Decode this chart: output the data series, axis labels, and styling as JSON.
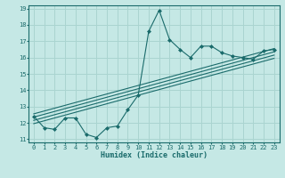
{
  "title": "",
  "xlabel": "Humidex (Indice chaleur)",
  "ylabel": "",
  "bg_color": "#c5e8e5",
  "line_color": "#1a6b6b",
  "grid_color": "#aad4d0",
  "x_data": [
    0,
    1,
    2,
    3,
    4,
    5,
    6,
    7,
    8,
    9,
    10,
    11,
    12,
    13,
    14,
    15,
    16,
    17,
    18,
    19,
    20,
    21,
    22,
    23
  ],
  "y_main": [
    12.4,
    11.7,
    11.6,
    12.3,
    12.3,
    11.3,
    11.1,
    11.7,
    11.8,
    12.8,
    13.7,
    17.6,
    18.9,
    17.1,
    16.5,
    16.0,
    16.7,
    16.7,
    16.3,
    16.1,
    16.0,
    15.9,
    16.4,
    16.5
  ],
  "regression_lines": [
    {
      "x0": 0,
      "y0": 12.55,
      "x1": 23,
      "y1": 16.55
    },
    {
      "x0": 0,
      "y0": 12.35,
      "x1": 23,
      "y1": 16.35
    },
    {
      "x0": 0,
      "y0": 12.15,
      "x1": 23,
      "y1": 16.15
    },
    {
      "x0": 0,
      "y0": 11.95,
      "x1": 23,
      "y1": 15.95
    }
  ],
  "ylim": [
    10.8,
    19.2
  ],
  "xlim": [
    -0.5,
    23.5
  ],
  "yticks": [
    11,
    12,
    13,
    14,
    15,
    16,
    17,
    18,
    19
  ],
  "xticks": [
    0,
    1,
    2,
    3,
    4,
    5,
    6,
    7,
    8,
    9,
    10,
    11,
    12,
    13,
    14,
    15,
    16,
    17,
    18,
    19,
    20,
    21,
    22,
    23
  ],
  "tick_fontsize": 5.0,
  "xlabel_fontsize": 6.0
}
